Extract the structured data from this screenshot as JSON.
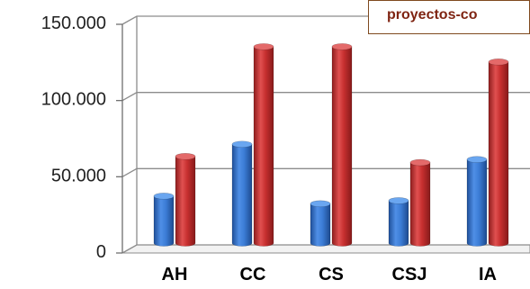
{
  "chart_data": {
    "type": "bar",
    "style": "3d-cylinder",
    "categories": [
      "AH",
      "CC",
      "CS",
      "CSJ",
      "IA"
    ],
    "series": [
      {
        "color": "#3c7dd6",
        "values": [
          32000,
          66000,
          27000,
          29000,
          56000
        ]
      },
      {
        "color": "#c62f2f",
        "values": [
          58000,
          130000,
          130000,
          54000,
          120000
        ]
      }
    ],
    "ylim": [
      0,
      150000
    ],
    "yticks": [
      0,
      50000,
      100000,
      150000
    ],
    "ytick_labels": [
      "0",
      "50.000",
      "100.000",
      "150.000"
    ],
    "grid": true,
    "legend_position": "top-right",
    "legend_text": "proyectos-co"
  }
}
